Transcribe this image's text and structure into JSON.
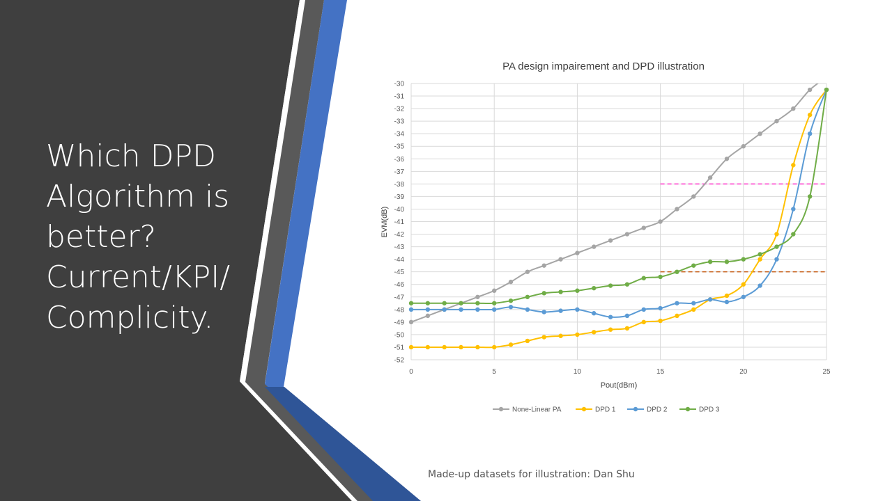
{
  "slide": {
    "title_lines": [
      "Which DPD",
      "Algorithm is",
      "better?",
      "Current/KPI/",
      "Complicity."
    ],
    "footnote": "Made-up datasets for illustration: Dan Shu"
  },
  "colors": {
    "panel_dark": "#3f3f3f",
    "stripe_gray": "#595959",
    "stripe_blue": "#4472c4",
    "stripe_navy": "#2f5597"
  },
  "chart_data": {
    "type": "line",
    "title": "PA design impairement and DPD illustration",
    "xlabel": "Pout(dBm)",
    "ylabel": "EVM(dB)",
    "xlim": [
      0,
      25
    ],
    "ylim": [
      -52,
      -30
    ],
    "x_ticks": [
      0,
      5,
      10,
      15,
      20,
      25
    ],
    "y_ticks": [
      -30,
      -31,
      -32,
      -33,
      -34,
      -35,
      -36,
      -37,
      -38,
      -39,
      -40,
      -41,
      -42,
      -43,
      -44,
      -45,
      -46,
      -47,
      -48,
      -49,
      -50,
      -51,
      -52
    ],
    "grid": true,
    "legend_position": "bottom",
    "x": [
      0,
      1,
      2,
      3,
      4,
      5,
      6,
      7,
      8,
      9,
      10,
      11,
      12,
      13,
      14,
      15,
      16,
      17,
      18,
      19,
      20,
      21,
      22,
      23,
      24,
      25
    ],
    "series": [
      {
        "name": "None-Linear PA",
        "color": "#a5a5a5",
        "x": [
          0,
          1,
          2,
          3,
          4,
          5,
          6,
          7,
          8,
          9,
          10,
          11,
          12,
          13,
          14,
          15,
          16,
          17,
          18,
          19,
          20,
          21,
          22,
          23,
          24,
          25
        ],
        "values": [
          -49,
          -48.5,
          -48,
          -47.5,
          -47,
          -46.5,
          -45.8,
          -45,
          -44.5,
          -44,
          -43.5,
          -43,
          -42.5,
          -42,
          -41.5,
          -41,
          -40,
          -39,
          -37.5,
          -36,
          -35,
          -34,
          -33,
          -32,
          -30.5,
          -29.5
        ]
      },
      {
        "name": "DPD 1",
        "color": "#ffc000",
        "x": [
          0,
          1,
          2,
          3,
          4,
          5,
          6,
          7,
          8,
          9,
          10,
          11,
          12,
          13,
          14,
          15,
          16,
          17,
          18,
          19,
          20,
          21,
          22,
          23,
          24,
          25
        ],
        "values": [
          -51,
          -51,
          -51,
          -51,
          -51,
          -51,
          -50.8,
          -50.5,
          -50.2,
          -50.1,
          -50,
          -49.8,
          -49.6,
          -49.5,
          -49,
          -48.9,
          -48.5,
          -48,
          -47.2,
          -46.9,
          -46,
          -44,
          -42,
          -36.5,
          -32.5,
          -30.5
        ]
      },
      {
        "name": "DPD 2",
        "color": "#5b9bd5",
        "x": [
          0,
          1,
          2,
          3,
          4,
          5,
          6,
          7,
          8,
          9,
          10,
          11,
          12,
          13,
          14,
          15,
          16,
          17,
          18,
          19,
          20,
          21,
          22,
          23,
          24,
          25
        ],
        "values": [
          -48,
          -48,
          -48,
          -48,
          -48,
          -48,
          -47.8,
          -48,
          -48.2,
          -48.1,
          -48,
          -48.3,
          -48.6,
          -48.5,
          -48,
          -47.9,
          -47.5,
          -47.5,
          -47.2,
          -47.4,
          -47,
          -46.1,
          -44,
          -40,
          -34,
          -30.5
        ]
      },
      {
        "name": "DPD 3",
        "color": "#70ad47",
        "x": [
          0,
          1,
          2,
          3,
          4,
          5,
          6,
          7,
          8,
          9,
          10,
          11,
          12,
          13,
          14,
          15,
          16,
          17,
          18,
          19,
          20,
          21,
          22,
          23,
          24,
          25
        ],
        "values": [
          -47.5,
          -47.5,
          -47.5,
          -47.5,
          -47.5,
          -47.5,
          -47.3,
          -47,
          -46.7,
          -46.6,
          -46.5,
          -46.3,
          -46.1,
          -46,
          -45.5,
          -45.4,
          -45,
          -44.5,
          -44.2,
          -44.2,
          -44,
          -43.6,
          -43,
          -42,
          -39,
          -30.5
        ]
      }
    ],
    "reference_lines": [
      {
        "y": -38,
        "x_start": 15,
        "x_end": 25,
        "color": "#ff33cc",
        "style": "dashed"
      },
      {
        "y": -45,
        "x_start": 15,
        "x_end": 25,
        "color": "#c55a11",
        "style": "dashed"
      }
    ]
  }
}
